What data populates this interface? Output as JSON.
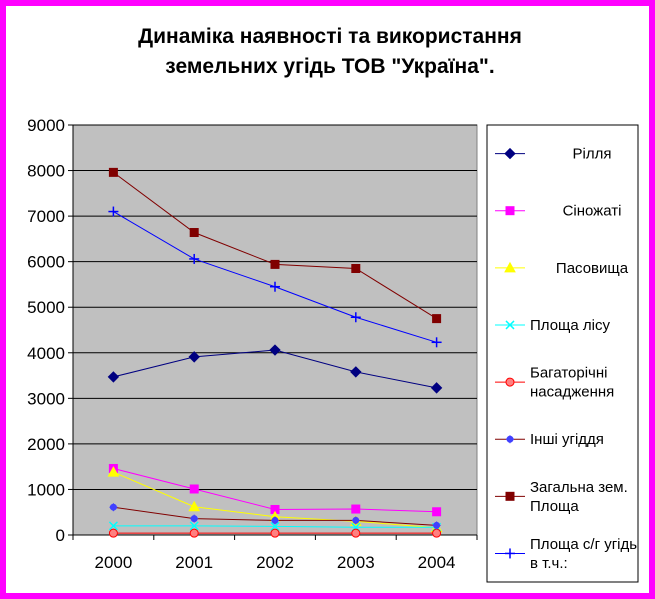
{
  "chart_data": {
    "type": "line",
    "title": "Динаміка наявності та використання\nземельних угідь ТОВ \"Україна\".",
    "xlabel": "",
    "ylabel": "",
    "categories": [
      "2000",
      "2001",
      "2002",
      "2003",
      "2004"
    ],
    "ylim": [
      0,
      9000
    ],
    "yticks": [
      0,
      1000,
      2000,
      3000,
      4000,
      5000,
      6000,
      7000,
      8000,
      9000
    ],
    "grid": true,
    "legend_position": "right",
    "plot_background": "#c0c0c0",
    "frame_color": "#ff00ff",
    "series": [
      {
        "name": "Рілля",
        "values": [
          3470,
          3910,
          4060,
          3580,
          3230
        ],
        "color": "#000080",
        "marker": "diamond"
      },
      {
        "name": "Сіножаті",
        "values": [
          1460,
          1010,
          560,
          570,
          510
        ],
        "color": "#ff00ff",
        "marker": "square"
      },
      {
        "name": "Пасовища",
        "values": [
          1380,
          620,
          400,
          300,
          160
        ],
        "color": "#ffff00",
        "marker": "triangle"
      },
      {
        "name": "Площа лісу",
        "values": [
          200,
          200,
          190,
          170,
          170
        ],
        "color": "#00ffff",
        "marker": "x"
      },
      {
        "name": "Багаторічні насадження",
        "values": [
          40,
          40,
          40,
          40,
          40
        ],
        "color": "#ff0000",
        "marker": "circle"
      },
      {
        "name": "Інші угіддя",
        "values": [
          610,
          360,
          320,
          320,
          210
        ],
        "color": "#800000",
        "marker": "star"
      },
      {
        "name": "Загальна зем. Площа",
        "values": [
          7960,
          6640,
          5940,
          5850,
          4750
        ],
        "color": "#800000",
        "marker": "square-filled"
      },
      {
        "name": "Площа с/г угідь в т.ч.:",
        "values": [
          7100,
          6060,
          5450,
          4780,
          4230
        ],
        "color": "#0000ff",
        "marker": "plus"
      }
    ]
  }
}
